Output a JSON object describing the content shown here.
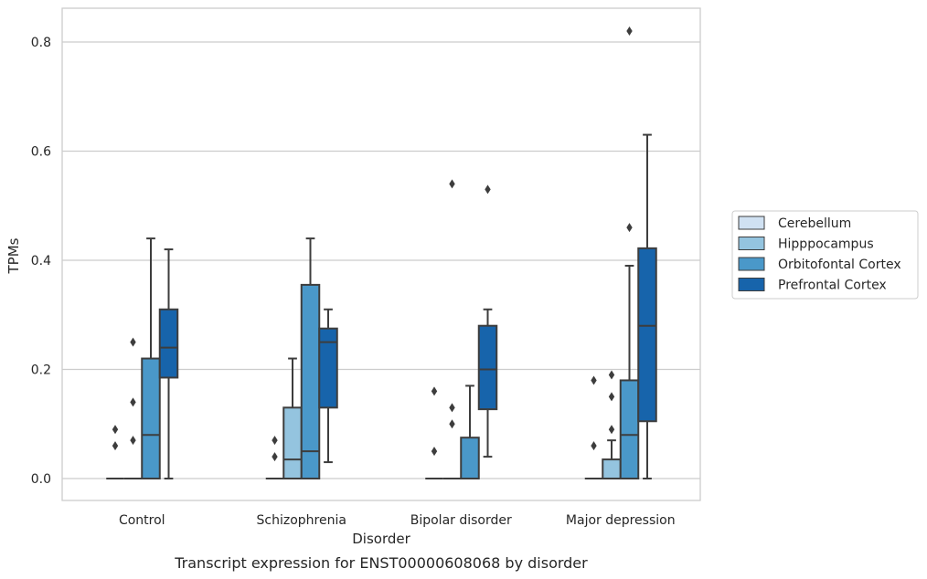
{
  "chart_data": {
    "type": "box",
    "title": "",
    "caption": "Transcript expression for ENST00000608068 by disorder",
    "xlabel": "Disorder",
    "ylabel": "TPMs",
    "ylim": [
      -0.04,
      0.86
    ],
    "yticks": [
      0.0,
      0.2,
      0.4,
      0.6,
      0.8
    ],
    "ytick_labels": [
      "0.0",
      "0.2",
      "0.4",
      "0.6",
      "0.8"
    ],
    "grid": "horizontal",
    "legend_position": "right",
    "categories": [
      "Control",
      "Schizophrenia",
      "Bipolar disorder",
      "Major depression"
    ],
    "series": [
      {
        "name": "Cerebellum",
        "color": "#d0e1f2",
        "boxes": [
          {
            "q1": 0,
            "median": 0,
            "q3": 0,
            "whisker_low": 0,
            "whisker_high": 0,
            "outliers": [
              0.06,
              0.09
            ]
          },
          {
            "q1": 0,
            "median": 0,
            "q3": 0,
            "whisker_low": 0,
            "whisker_high": 0,
            "outliers": [
              0.04,
              0.07
            ]
          },
          {
            "q1": 0,
            "median": 0,
            "q3": 0,
            "whisker_low": 0,
            "whisker_high": 0,
            "outliers": [
              0.05,
              0.16
            ]
          },
          {
            "q1": 0,
            "median": 0,
            "q3": 0,
            "whisker_low": 0,
            "whisker_high": 0,
            "outliers": [
              0.06,
              0.18
            ]
          }
        ]
      },
      {
        "name": "Hipppocampus",
        "color": "#94c4df",
        "boxes": [
          {
            "q1": 0,
            "median": 0,
            "q3": 0,
            "whisker_low": 0,
            "whisker_high": 0,
            "outliers": [
              0.07,
              0.14,
              0.25
            ]
          },
          {
            "q1": 0,
            "median": 0.035,
            "q3": 0.13,
            "whisker_low": 0,
            "whisker_high": 0.22,
            "outliers": []
          },
          {
            "q1": 0,
            "median": 0,
            "q3": 0,
            "whisker_low": 0,
            "whisker_high": 0,
            "outliers": [
              0.1,
              0.13,
              0.54
            ]
          },
          {
            "q1": 0,
            "median": 0,
            "q3": 0.035,
            "whisker_low": 0,
            "whisker_high": 0.07,
            "outliers": [
              0.09,
              0.15,
              0.19
            ]
          }
        ]
      },
      {
        "name": "Orbitofontal Cortex",
        "color": "#4a98c9",
        "boxes": [
          {
            "q1": 0,
            "median": 0.08,
            "q3": 0.22,
            "whisker_low": 0,
            "whisker_high": 0.44,
            "outliers": []
          },
          {
            "q1": 0,
            "median": 0.05,
            "q3": 0.355,
            "whisker_low": 0,
            "whisker_high": 0.44,
            "outliers": []
          },
          {
            "q1": 0,
            "median": 0,
            "q3": 0.075,
            "whisker_low": 0,
            "whisker_high": 0.17,
            "outliers": []
          },
          {
            "q1": 0,
            "median": 0.08,
            "q3": 0.18,
            "whisker_low": 0,
            "whisker_high": 0.39,
            "outliers": [
              0.46,
              0.82
            ]
          }
        ]
      },
      {
        "name": "Prefrontal Cortex",
        "color": "#1764ab",
        "boxes": [
          {
            "q1": 0.185,
            "median": 0.24,
            "q3": 0.31,
            "whisker_low": 0,
            "whisker_high": 0.42,
            "outliers": []
          },
          {
            "q1": 0.13,
            "median": 0.25,
            "q3": 0.275,
            "whisker_low": 0.03,
            "whisker_high": 0.31,
            "outliers": []
          },
          {
            "q1": 0.127,
            "median": 0.2,
            "q3": 0.28,
            "whisker_low": 0.04,
            "whisker_high": 0.31,
            "outliers": [
              0.53
            ]
          },
          {
            "q1": 0.105,
            "median": 0.28,
            "q3": 0.422,
            "whisker_low": 0,
            "whisker_high": 0.63,
            "outliers": []
          }
        ]
      }
    ]
  }
}
